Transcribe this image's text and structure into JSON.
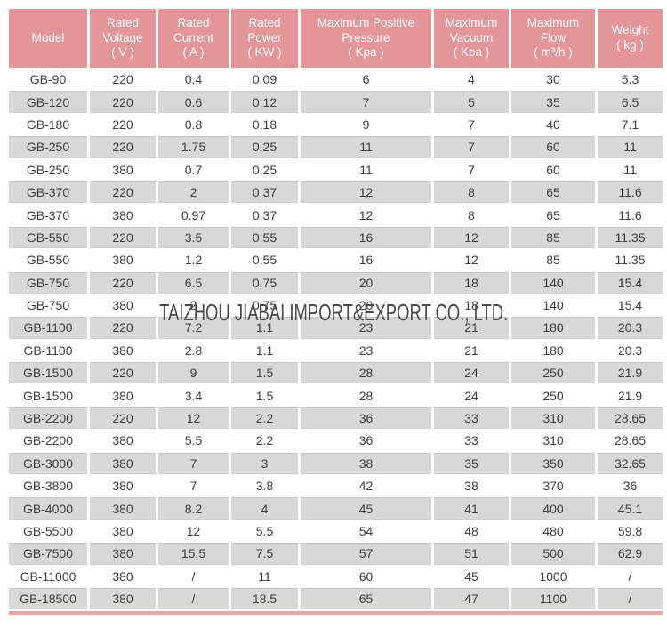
{
  "watermark": "TAIZHOU JIABAI IMPORT&EXPORT CO., LTD.",
  "colors": {
    "header_bg": "#e39598",
    "header_text": "#ffffff",
    "row_alt_bg": "#d8d8d8",
    "row_bg": "#ffffff",
    "body_text": "#3d3d3d",
    "bottom_line": "#eca3a4",
    "watermark_text": "#4a4a4a"
  },
  "table": {
    "columns": [
      {
        "id": "model",
        "lines": [
          "Model"
        ]
      },
      {
        "id": "rated-voltage",
        "lines": [
          "Rated",
          "Voltage",
          "( V )"
        ]
      },
      {
        "id": "rated-current",
        "lines": [
          "Rated",
          "Current",
          "( A )"
        ]
      },
      {
        "id": "rated-power",
        "lines": [
          "Rated",
          "Power",
          "( KW )"
        ]
      },
      {
        "id": "max-positive-pressure",
        "lines": [
          "Maximum Positive",
          "Pressure",
          "( Kpa )"
        ]
      },
      {
        "id": "max-vacuum",
        "lines": [
          "Maximum",
          "Vacuum",
          "( Kpa )"
        ]
      },
      {
        "id": "max-flow",
        "lines": [
          "Maximum",
          "Flow",
          "( m³/h )"
        ]
      },
      {
        "id": "weight",
        "lines": [
          "Weight",
          "( kg )"
        ]
      }
    ],
    "rows": [
      [
        "GB-90",
        "220",
        "0.4",
        "0.09",
        "6",
        "4",
        "30",
        "5.3"
      ],
      [
        "GB-120",
        "220",
        "0.6",
        "0.12",
        "7",
        "5",
        "35",
        "6.5"
      ],
      [
        "GB-180",
        "220",
        "0.8",
        "0.18",
        "9",
        "7",
        "40",
        "7.1"
      ],
      [
        "GB-250",
        "220",
        "1.75",
        "0.25",
        "11",
        "7",
        "60",
        "11"
      ],
      [
        "GB-250",
        "380",
        "0.7",
        "0.25",
        "11",
        "7",
        "60",
        "11"
      ],
      [
        "GB-370",
        "220",
        "2",
        "0.37",
        "12",
        "8",
        "65",
        "11.6"
      ],
      [
        "GB-370",
        "380",
        "0.97",
        "0.37",
        "12",
        "8",
        "65",
        "11.6"
      ],
      [
        "GB-550",
        "220",
        "3.5",
        "0.55",
        "16",
        "12",
        "85",
        "11.35"
      ],
      [
        "GB-550",
        "380",
        "1.2",
        "0.55",
        "16",
        "12",
        "85",
        "11.35"
      ],
      [
        "GB-750",
        "220",
        "6.5",
        "0.75",
        "20",
        "18",
        "140",
        "15.4"
      ],
      [
        "GB-750",
        "380",
        "2",
        "0.75",
        "20",
        "18",
        "140",
        "15.4"
      ],
      [
        "GB-1100",
        "220",
        "7.2",
        "1.1",
        "23",
        "21",
        "180",
        "20.3"
      ],
      [
        "GB-1100",
        "380",
        "2.8",
        "1.1",
        "23",
        "21",
        "180",
        "20.3"
      ],
      [
        "GB-1500",
        "220",
        "9",
        "1.5",
        "28",
        "24",
        "250",
        "21.9"
      ],
      [
        "GB-1500",
        "380",
        "3.4",
        "1.5",
        "28",
        "24",
        "250",
        "21.9"
      ],
      [
        "GB-2200",
        "220",
        "12",
        "2.2",
        "36",
        "33",
        "310",
        "28.65"
      ],
      [
        "GB-2200",
        "380",
        "5.5",
        "2.2",
        "36",
        "33",
        "310",
        "28.65"
      ],
      [
        "GB-3000",
        "380",
        "7",
        "3",
        "38",
        "35",
        "350",
        "32.65"
      ],
      [
        "GB-3800",
        "380",
        "7",
        "3.8",
        "42",
        "38",
        "370",
        "36"
      ],
      [
        "GB-4000",
        "380",
        "8.2",
        "4",
        "45",
        "41",
        "400",
        "45.1"
      ],
      [
        "GB-5500",
        "380",
        "12",
        "5.5",
        "54",
        "48",
        "480",
        "59.8"
      ],
      [
        "GB-7500",
        "380",
        "15.5",
        "7.5",
        "57",
        "51",
        "500",
        "62.9"
      ],
      [
        "GB-11000",
        "380",
        "/",
        "11",
        "60",
        "45",
        "1000",
        "/"
      ],
      [
        "GB-18500",
        "380",
        "/",
        "18.5",
        "65",
        "47",
        "1100",
        "/"
      ]
    ]
  }
}
